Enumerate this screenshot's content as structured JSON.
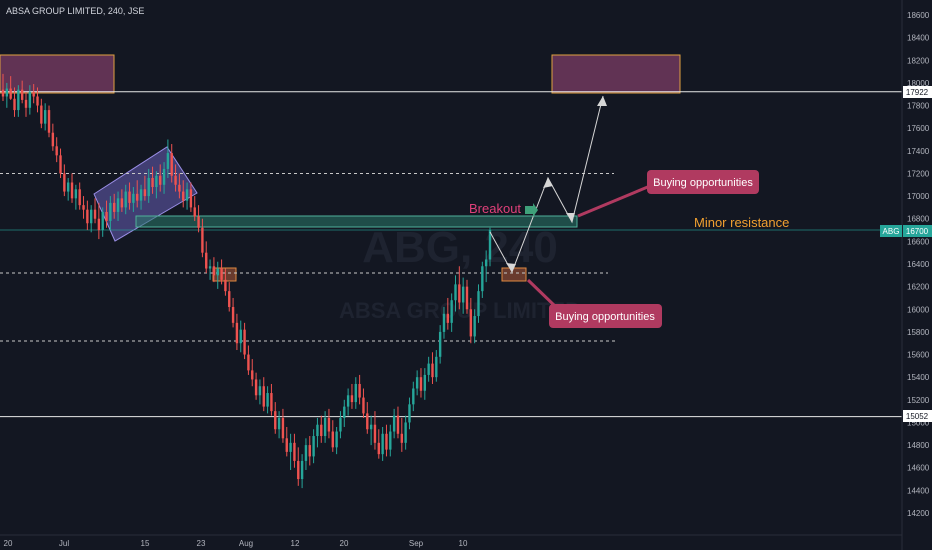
{
  "header": {
    "symbol_line": "ABSA GROUP LIMITED, 240, JSE"
  },
  "watermark": {
    "ticker": "ABG, 240",
    "name": "ABSA GROUP LIMITED"
  },
  "colors": {
    "background": "#131722",
    "up_candle": "#26a69a",
    "down_candle": "#ef5350",
    "axis_text": "#b2b5be",
    "price_badge": "#26a69a",
    "callout_fill": "#b03a60",
    "breakout_text": "#e0407a",
    "minor_resistance_text": "#f0a030",
    "zone_top_fill": "#a34a7e"
  },
  "chart_data": {
    "type": "candlestick",
    "title": "ABSA GROUP LIMITED, 240, JSE",
    "y_axis_ticks": [
      18600,
      18400,
      18200,
      18000,
      17800,
      17600,
      17400,
      17200,
      17000,
      16800,
      16600,
      16400,
      16200,
      16000,
      15800,
      15600,
      15400,
      15200,
      15000,
      14800,
      14600,
      14400,
      14200
    ],
    "x_axis_ticks": [
      "20",
      "Jul",
      "15",
      "23",
      "Aug",
      "12",
      "20",
      "Sep",
      "10"
    ],
    "ylim": [
      14050,
      18760
    ],
    "horizontal_levels": [
      {
        "label": "17922",
        "price": 17922,
        "style": "solid"
      },
      {
        "label": "15052",
        "price": 15052,
        "style": "solid"
      }
    ],
    "dashed_levels": [
      17200,
      16320,
      15720
    ],
    "last_price": {
      "ticker": "ABG",
      "label": "16700",
      "price": 16700
    },
    "annotations": {
      "breakout": "Breakout",
      "minor_resistance": "Minor resistance",
      "callout_upper": "Buying opportunities",
      "callout_lower": "Buying opportunities"
    },
    "candles": [
      {
        "o": 17940,
        "h": 18080,
        "l": 17840,
        "c": 17880
      },
      {
        "o": 17880,
        "h": 18000,
        "l": 17780,
        "c": 17950
      },
      {
        "o": 17950,
        "h": 18060,
        "l": 17850,
        "c": 17860
      },
      {
        "o": 17860,
        "h": 17960,
        "l": 17700,
        "c": 17760
      },
      {
        "o": 17760,
        "h": 17980,
        "l": 17700,
        "c": 17940
      },
      {
        "o": 17940,
        "h": 18020,
        "l": 17820,
        "c": 17850
      },
      {
        "o": 17850,
        "h": 17920,
        "l": 17700,
        "c": 17780
      },
      {
        "o": 17780,
        "h": 17980,
        "l": 17720,
        "c": 17920
      },
      {
        "o": 17920,
        "h": 17990,
        "l": 17820,
        "c": 17880
      },
      {
        "o": 17880,
        "h": 17960,
        "l": 17740,
        "c": 17800
      },
      {
        "o": 17800,
        "h": 17860,
        "l": 17600,
        "c": 17640
      },
      {
        "o": 17640,
        "h": 17820,
        "l": 17580,
        "c": 17760
      },
      {
        "o": 17760,
        "h": 17800,
        "l": 17520,
        "c": 17560
      },
      {
        "o": 17560,
        "h": 17640,
        "l": 17400,
        "c": 17440
      },
      {
        "o": 17440,
        "h": 17520,
        "l": 17300,
        "c": 17360
      },
      {
        "o": 17360,
        "h": 17420,
        "l": 17160,
        "c": 17200
      },
      {
        "o": 17200,
        "h": 17280,
        "l": 17000,
        "c": 17040
      },
      {
        "o": 17040,
        "h": 17160,
        "l": 16960,
        "c": 17120
      },
      {
        "o": 17120,
        "h": 17200,
        "l": 16940,
        "c": 16980
      },
      {
        "o": 16980,
        "h": 17100,
        "l": 16880,
        "c": 17060
      },
      {
        "o": 17060,
        "h": 17120,
        "l": 16880,
        "c": 16920
      },
      {
        "o": 16920,
        "h": 17000,
        "l": 16800,
        "c": 16880
      },
      {
        "o": 16880,
        "h": 16960,
        "l": 16700,
        "c": 16760
      },
      {
        "o": 16760,
        "h": 16920,
        "l": 16680,
        "c": 16880
      },
      {
        "o": 16880,
        "h": 16980,
        "l": 16760,
        "c": 16800
      },
      {
        "o": 16800,
        "h": 16940,
        "l": 16620,
        "c": 16700
      },
      {
        "o": 16700,
        "h": 16900,
        "l": 16640,
        "c": 16860
      },
      {
        "o": 16860,
        "h": 16960,
        "l": 16720,
        "c": 16780
      },
      {
        "o": 16780,
        "h": 17000,
        "l": 16700,
        "c": 16940
      },
      {
        "o": 16940,
        "h": 17020,
        "l": 16800,
        "c": 16860
      },
      {
        "o": 16860,
        "h": 17040,
        "l": 16780,
        "c": 16980
      },
      {
        "o": 16980,
        "h": 17060,
        "l": 16860,
        "c": 16900
      },
      {
        "o": 16900,
        "h": 17100,
        "l": 16840,
        "c": 17040
      },
      {
        "o": 17040,
        "h": 17120,
        "l": 16880,
        "c": 16940
      },
      {
        "o": 16940,
        "h": 17080,
        "l": 16860,
        "c": 17020
      },
      {
        "o": 17020,
        "h": 17140,
        "l": 16900,
        "c": 16960
      },
      {
        "o": 16960,
        "h": 17100,
        "l": 16880,
        "c": 17060
      },
      {
        "o": 17060,
        "h": 17180,
        "l": 16960,
        "c": 17000
      },
      {
        "o": 17000,
        "h": 17240,
        "l": 16940,
        "c": 17160
      },
      {
        "o": 17160,
        "h": 17260,
        "l": 17020,
        "c": 17080
      },
      {
        "o": 17080,
        "h": 17220,
        "l": 16980,
        "c": 17180
      },
      {
        "o": 17180,
        "h": 17280,
        "l": 17040,
        "c": 17100
      },
      {
        "o": 17100,
        "h": 17300,
        "l": 17020,
        "c": 17240
      },
      {
        "o": 17240,
        "h": 17500,
        "l": 17160,
        "c": 17380
      },
      {
        "o": 17380,
        "h": 17460,
        "l": 17120,
        "c": 17180
      },
      {
        "o": 17180,
        "h": 17280,
        "l": 17040,
        "c": 17100
      },
      {
        "o": 17100,
        "h": 17200,
        "l": 16980,
        "c": 17040
      },
      {
        "o": 17040,
        "h": 17140,
        "l": 16900,
        "c": 16960
      },
      {
        "o": 16960,
        "h": 17120,
        "l": 16880,
        "c": 17060
      },
      {
        "o": 17060,
        "h": 17120,
        "l": 16860,
        "c": 16900
      },
      {
        "o": 16900,
        "h": 17000,
        "l": 16780,
        "c": 16820
      },
      {
        "o": 16820,
        "h": 16920,
        "l": 16680,
        "c": 16720
      },
      {
        "o": 16720,
        "h": 16800,
        "l": 16460,
        "c": 16500
      },
      {
        "o": 16500,
        "h": 16600,
        "l": 16320,
        "c": 16360
      },
      {
        "o": 16360,
        "h": 16440,
        "l": 16260,
        "c": 16380
      },
      {
        "o": 16380,
        "h": 16460,
        "l": 16240,
        "c": 16300
      },
      {
        "o": 16300,
        "h": 16420,
        "l": 16180,
        "c": 16360
      },
      {
        "o": 16360,
        "h": 16440,
        "l": 16220,
        "c": 16260
      },
      {
        "o": 16260,
        "h": 16360,
        "l": 16120,
        "c": 16160
      },
      {
        "o": 16160,
        "h": 16240,
        "l": 15980,
        "c": 16020
      },
      {
        "o": 16020,
        "h": 16100,
        "l": 15840,
        "c": 15880
      },
      {
        "o": 15880,
        "h": 15960,
        "l": 15640,
        "c": 15700
      },
      {
        "o": 15700,
        "h": 15900,
        "l": 15620,
        "c": 15820
      },
      {
        "o": 15820,
        "h": 15880,
        "l": 15560,
        "c": 15600
      },
      {
        "o": 15600,
        "h": 15680,
        "l": 15420,
        "c": 15460
      },
      {
        "o": 15460,
        "h": 15560,
        "l": 15320,
        "c": 15380
      },
      {
        "o": 15380,
        "h": 15440,
        "l": 15200,
        "c": 15240
      },
      {
        "o": 15240,
        "h": 15380,
        "l": 15160,
        "c": 15320
      },
      {
        "o": 15320,
        "h": 15400,
        "l": 15100,
        "c": 15140
      },
      {
        "o": 15140,
        "h": 15320,
        "l": 15080,
        "c": 15260
      },
      {
        "o": 15260,
        "h": 15340,
        "l": 15060,
        "c": 15100
      },
      {
        "o": 15100,
        "h": 15180,
        "l": 14900,
        "c": 14940
      },
      {
        "o": 14940,
        "h": 15100,
        "l": 14860,
        "c": 15040
      },
      {
        "o": 15040,
        "h": 15120,
        "l": 14820,
        "c": 14860
      },
      {
        "o": 14860,
        "h": 14960,
        "l": 14700,
        "c": 14740
      },
      {
        "o": 14740,
        "h": 14900,
        "l": 14580,
        "c": 14820
      },
      {
        "o": 14820,
        "h": 14900,
        "l": 14600,
        "c": 14660
      },
      {
        "o": 14660,
        "h": 14780,
        "l": 14440,
        "c": 14500
      },
      {
        "o": 14500,
        "h": 14720,
        "l": 14420,
        "c": 14660
      },
      {
        "o": 14660,
        "h": 14860,
        "l": 14580,
        "c": 14800
      },
      {
        "o": 14800,
        "h": 14880,
        "l": 14620,
        "c": 14700
      },
      {
        "o": 14700,
        "h": 14940,
        "l": 14640,
        "c": 14880
      },
      {
        "o": 14880,
        "h": 15040,
        "l": 14780,
        "c": 14980
      },
      {
        "o": 14980,
        "h": 15060,
        "l": 14820,
        "c": 14880
      },
      {
        "o": 14880,
        "h": 15100,
        "l": 14820,
        "c": 15040
      },
      {
        "o": 15040,
        "h": 15120,
        "l": 14860,
        "c": 14920
      },
      {
        "o": 14920,
        "h": 15020,
        "l": 14740,
        "c": 14780
      },
      {
        "o": 14780,
        "h": 14960,
        "l": 14720,
        "c": 14920
      },
      {
        "o": 14920,
        "h": 15100,
        "l": 14860,
        "c": 15040
      },
      {
        "o": 15040,
        "h": 15200,
        "l": 14960,
        "c": 15140
      },
      {
        "o": 15140,
        "h": 15300,
        "l": 15060,
        "c": 15240
      },
      {
        "o": 15240,
        "h": 15340,
        "l": 15120,
        "c": 15180
      },
      {
        "o": 15180,
        "h": 15400,
        "l": 15120,
        "c": 15340
      },
      {
        "o": 15340,
        "h": 15420,
        "l": 15160,
        "c": 15220
      },
      {
        "o": 15220,
        "h": 15300,
        "l": 15040,
        "c": 15080
      },
      {
        "o": 15080,
        "h": 15180,
        "l": 14900,
        "c": 14940
      },
      {
        "o": 14940,
        "h": 15060,
        "l": 14800,
        "c": 14980
      },
      {
        "o": 14980,
        "h": 15100,
        "l": 14760,
        "c": 14820
      },
      {
        "o": 14820,
        "h": 14940,
        "l": 14680,
        "c": 14720
      },
      {
        "o": 14720,
        "h": 14960,
        "l": 14660,
        "c": 14900
      },
      {
        "o": 14900,
        "h": 14980,
        "l": 14700,
        "c": 14760
      },
      {
        "o": 14760,
        "h": 14980,
        "l": 14700,
        "c": 14920
      },
      {
        "o": 14920,
        "h": 15120,
        "l": 14860,
        "c": 15060
      },
      {
        "o": 15060,
        "h": 15140,
        "l": 14860,
        "c": 14900
      },
      {
        "o": 14900,
        "h": 15040,
        "l": 14740,
        "c": 14820
      },
      {
        "o": 14820,
        "h": 15060,
        "l": 14760,
        "c": 15000
      },
      {
        "o": 15000,
        "h": 15220,
        "l": 14940,
        "c": 15160
      },
      {
        "o": 15160,
        "h": 15360,
        "l": 15100,
        "c": 15300
      },
      {
        "o": 15300,
        "h": 15460,
        "l": 15240,
        "c": 15400
      },
      {
        "o": 15400,
        "h": 15480,
        "l": 15220,
        "c": 15280
      },
      {
        "o": 15280,
        "h": 15480,
        "l": 15200,
        "c": 15420
      },
      {
        "o": 15420,
        "h": 15580,
        "l": 15360,
        "c": 15520
      },
      {
        "o": 15520,
        "h": 15620,
        "l": 15340,
        "c": 15400
      },
      {
        "o": 15400,
        "h": 15640,
        "l": 15360,
        "c": 15580
      },
      {
        "o": 15580,
        "h": 15860,
        "l": 15520,
        "c": 15800
      },
      {
        "o": 15800,
        "h": 16020,
        "l": 15740,
        "c": 15960
      },
      {
        "o": 15960,
        "h": 16100,
        "l": 15820,
        "c": 15880
      },
      {
        "o": 15880,
        "h": 16140,
        "l": 15800,
        "c": 16080
      },
      {
        "o": 16080,
        "h": 16300,
        "l": 15980,
        "c": 16220
      },
      {
        "o": 16220,
        "h": 16380,
        "l": 16000,
        "c": 16060
      },
      {
        "o": 16060,
        "h": 16280,
        "l": 15960,
        "c": 16200
      },
      {
        "o": 16200,
        "h": 16260,
        "l": 15960,
        "c": 16000
      },
      {
        "o": 16000,
        "h": 16100,
        "l": 15700,
        "c": 15760
      },
      {
        "o": 15760,
        "h": 16000,
        "l": 15700,
        "c": 15940
      },
      {
        "o": 15940,
        "h": 16220,
        "l": 15880,
        "c": 16160
      },
      {
        "o": 16160,
        "h": 16420,
        "l": 16100,
        "c": 16380
      },
      {
        "o": 16380,
        "h": 16520,
        "l": 16240,
        "c": 16440
      },
      {
        "o": 16440,
        "h": 16720,
        "l": 16380,
        "c": 16700
      }
    ],
    "zones": [
      {
        "name": "top-left-supply-zone",
        "type": "supply"
      },
      {
        "name": "top-right-target-zone",
        "type": "target"
      },
      {
        "name": "breakout-zone",
        "type": "breakout"
      },
      {
        "name": "small-demand-box-left",
        "type": "demand"
      },
      {
        "name": "small-demand-box-right",
        "type": "demand"
      }
    ]
  }
}
